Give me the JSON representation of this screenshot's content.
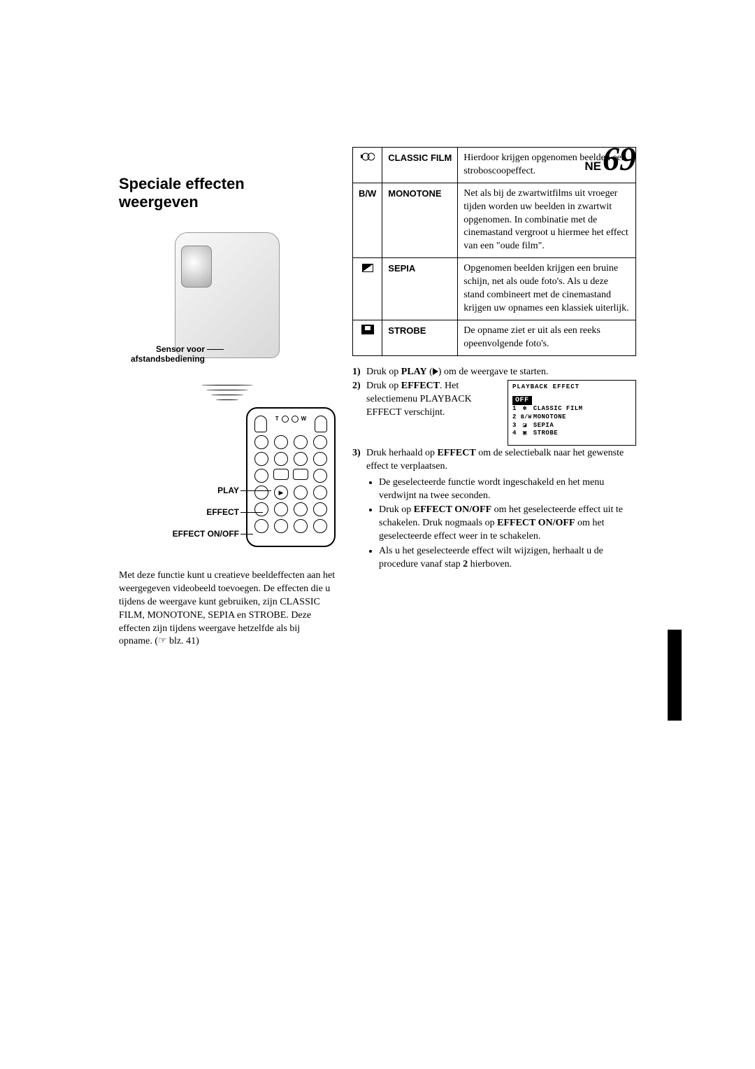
{
  "header": {
    "lang": "NE",
    "page_number": "69"
  },
  "section_title": "Speciale effecten weergeven",
  "diagram": {
    "sensor_label": "Sensor voor afstandsbediening",
    "remote_labels": {
      "play": "PLAY",
      "effect": "EFFECT",
      "onoff": "EFFECT ON/OFF",
      "zoom_t": "T",
      "zoom_w": "W"
    }
  },
  "left_paragraph": "Met deze functie kunt u creatieve beeldeffecten aan het weergegeven videobeeld toevoegen. De effecten die u tijdens de weergave kunt gebruiken, zijn CLASSIC FILM, MONOTONE, SEPIA en STROBE. Deze effecten zijn tijdens weergave hetzelfde als bij opname. (☞ blz. 41)",
  "effects": [
    {
      "icon_type": "classic",
      "name": "CLASSIC FILM",
      "desc": "Hierdoor krijgen opgenomen beelden een stroboscoopeffect."
    },
    {
      "icon_type": "text",
      "icon_text": "B/W",
      "name": "MONOTONE",
      "desc": "Net als bij de zwartwitfilms uit vroeger tijden worden uw beelden in zwartwit opgenomen. In combinatie met de cinemastand vergroot u hiermee het effect van een \"oude film\"."
    },
    {
      "icon_type": "sepia",
      "name": "SEPIA",
      "desc": "Opgenomen beelden krijgen een bruine schijn, net als oude foto's. Als u deze stand combineert met de cinemastand krijgen uw opnames een klassiek uiterlijk."
    },
    {
      "icon_type": "strobe",
      "name": "STROBE",
      "desc": "De opname ziet er uit als een reeks opeenvolgende foto's."
    }
  ],
  "steps": {
    "s1_pre": "Druk op ",
    "s1_bold": "PLAY",
    "s1_post": " (",
    "s1_post2": ") om de weergave te starten.",
    "s2_pre": "Druk op ",
    "s2_bold": "EFFECT",
    "s2_post": ". Het selectiemenu PLAYBACK EFFECT verschijnt.",
    "s3_pre": "Druk herhaald op ",
    "s3_bold": "EFFECT",
    "s3_post": " om de selectiebalk naar het gewenste effect te verplaatsen.",
    "bullets": [
      {
        "pre": "De geselecteerde functie wordt ingeschakeld en het menu verdwijnt na twee seconden."
      },
      {
        "pre": "Druk op ",
        "b1": "EFFECT ON/OFF",
        "mid1": " om het geselecteerde effect uit te schakelen. Druk nogmaals op ",
        "b2": "EFFECT ON/OFF",
        "mid2": " om het geselecteerde effect weer in te schakelen."
      },
      {
        "pre": "Als u het geselecteerde effect wilt wijzigen, herhaalt u de procedure vanaf stap ",
        "b1": "2",
        "mid1": " hierboven."
      }
    ]
  },
  "lcd": {
    "title": "PLAYBACK  EFFECT",
    "off": "OFF",
    "rows": [
      {
        "n": "1",
        "label": "CLASSIC  FILM"
      },
      {
        "n": "2",
        "label": "B/W  MONOTONE"
      },
      {
        "n": "3",
        "label": "SEPIA"
      },
      {
        "n": "4",
        "label": "STROBE"
      }
    ]
  },
  "waves_widths": [
    74,
    60,
    46,
    32
  ]
}
